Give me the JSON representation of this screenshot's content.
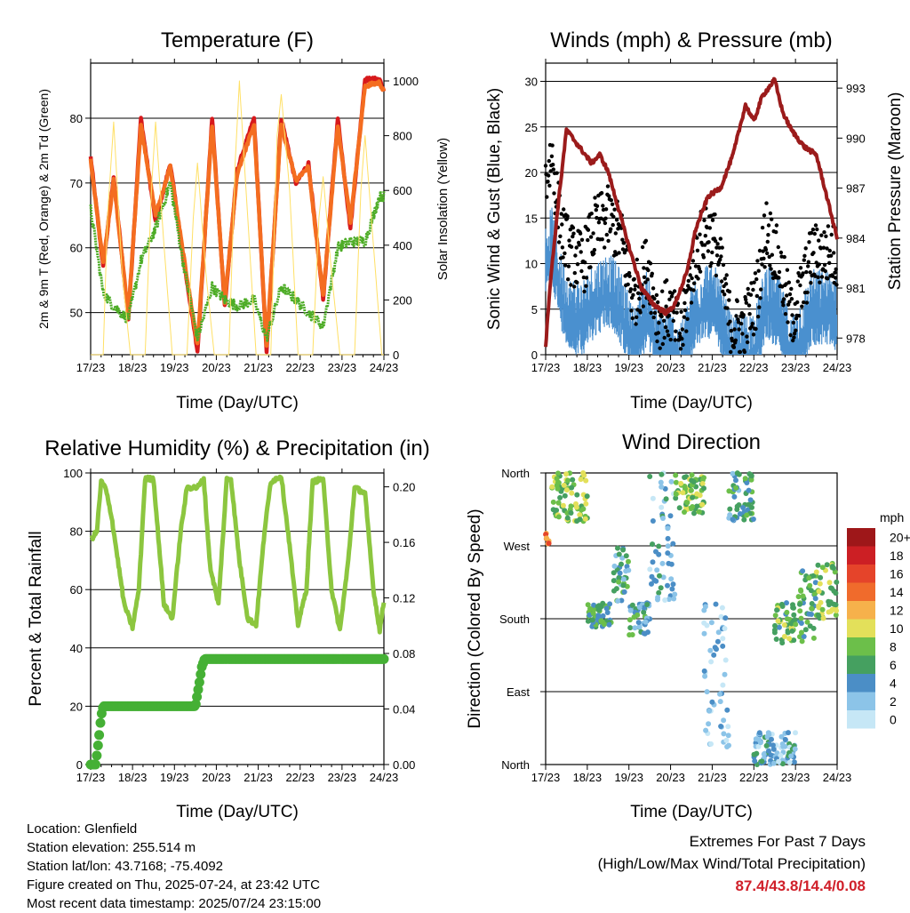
{
  "x_ticks": [
    "17/23",
    "18/23",
    "19/23",
    "20/23",
    "21/23",
    "22/23",
    "23/23",
    "24/23"
  ],
  "charts": {
    "temperature": {
      "title": "Temperature (F)",
      "xlabel": "Time (Day/UTC)",
      "ylabel": "2m & 9m T (Red, Orange) & 2m Td (Green)",
      "ylabel_right": "Solar Insolation (Yellow)"
    },
    "winds": {
      "title": "Winds (mph) & Pressure (mb)",
      "xlabel": "Time (Day/UTC)",
      "ylabel": "Sonic Wind & Gust (Blue, Black)",
      "ylabel_right": "Station Pressure (Maroon)"
    },
    "humidity": {
      "title": "Relative Humidity (%) & Precipitation (in)",
      "xlabel": "Time (Day/UTC)",
      "ylabel": "Percent & Total Rainfall"
    },
    "direction": {
      "title": "Wind Direction",
      "xlabel": "Time (Day/UTC)",
      "ylabel": "Direction (Colored By Speed)",
      "legend_title": "mph"
    }
  },
  "info": {
    "location": "Location: Glenfield",
    "elevation": "Station elevation: 255.514 m",
    "latlon": "Station lat/lon: 43.7168; -75.4092",
    "created": "Figure created on Thu, 2025-07-24, at 23:42 UTC",
    "latest": "Most recent data timestamp: 2025/07/24 23:15:00"
  },
  "extremes": {
    "line1": "Extremes For Past 7 Days",
    "line2": "(High/Low/Max Wind/Total Precipitation)",
    "values": "87.4/43.8/14.4/0.08"
  },
  "colors": {
    "temp_2m": "#d7191c",
    "temp_9m": "#f46d20",
    "dewpoint": "#4dac26",
    "solar": "#ffe066",
    "sonic_wind": "#4a90cf",
    "gust": "#000000",
    "pressure": "#9b1b1b",
    "rh": "#8cc63f",
    "precip": "#45b035"
  },
  "chart_data": [
    {
      "id": "temperature",
      "type": "line",
      "title": "Temperature (F)",
      "xlabel": "Time (Day/UTC)",
      "ylabel": "2m & 9m T (Red, Orange) & 2m Td (Green)",
      "ylabel_right": "Solar Insolation (Yellow)",
      "x_ticks": [
        "17/23",
        "18/23",
        "19/23",
        "20/23",
        "21/23",
        "22/23",
        "23/23",
        "24/23"
      ],
      "y_ticks": [
        50,
        60,
        70,
        80
      ],
      "y_right_ticks": [
        0,
        200,
        400,
        600,
        800,
        1000
      ],
      "ylim": [
        43.5,
        88.5
      ],
      "ylim_right": [
        0,
        1065
      ],
      "grid": "horizontal",
      "x_days": [
        0,
        0.3,
        0.55,
        0.9,
        1.2,
        1.55,
        1.9,
        2.2,
        2.55,
        2.9,
        3.2,
        3.5,
        3.9,
        4.2,
        4.55,
        4.9,
        5.2,
        5.55,
        5.9,
        6.2,
        6.55,
        6.9,
        7.0
      ],
      "series": [
        {
          "name": "2m T",
          "axis": "left",
          "color": "#d7191c",
          "values": [
            74,
            57,
            71,
            49,
            80,
            64,
            73,
            59,
            44,
            80,
            51,
            72,
            80,
            44,
            80,
            70,
            73,
            52,
            80,
            63,
            86,
            86,
            84
          ]
        },
        {
          "name": "9m T",
          "axis": "left",
          "color": "#f46d20",
          "values": [
            73.5,
            57.5,
            70.5,
            49.5,
            79,
            65,
            72.5,
            59.5,
            45,
            79,
            51.5,
            71.5,
            79,
            45,
            79,
            70.5,
            72.5,
            52.5,
            79,
            64,
            85,
            85.5,
            84
          ]
        },
        {
          "name": "2m Td",
          "axis": "left",
          "color": "#4dac26",
          "values": [
            66,
            53,
            51,
            49,
            58,
            63,
            70,
            58,
            46,
            54,
            52,
            51,
            52,
            46,
            54,
            52,
            50,
            48,
            60,
            61,
            61,
            68,
            68
          ]
        },
        {
          "name": "Solar Insolation",
          "axis": "right",
          "color": "#ffe066",
          "x_days": [
            0,
            0.3,
            0.4,
            0.55,
            0.75,
            0.95,
            1.3,
            1.45,
            1.55,
            1.75,
            1.95,
            2.3,
            2.45,
            2.55,
            2.75,
            2.95,
            3.3,
            3.45,
            3.55,
            3.75,
            3.95,
            4.3,
            4.45,
            4.55,
            4.75,
            4.95,
            5.3,
            5.45,
            5.55,
            5.75,
            5.95,
            6.3,
            6.45,
            6.55,
            6.75,
            6.95,
            7.0
          ],
          "values": [
            0,
            0,
            500,
            850,
            300,
            0,
            0,
            600,
            850,
            400,
            0,
            0,
            500,
            700,
            300,
            0,
            0,
            700,
            1000,
            500,
            0,
            0,
            800,
            950,
            600,
            0,
            0,
            500,
            650,
            300,
            0,
            0,
            600,
            800,
            400,
            0,
            0
          ]
        }
      ]
    },
    {
      "id": "winds",
      "type": "line",
      "title": "Winds (mph) & Pressure (mb)",
      "xlabel": "Time (Day/UTC)",
      "ylabel": "Sonic Wind & Gust (Blue, Black)",
      "ylabel_right": "Station Pressure (Maroon)",
      "x_ticks": [
        "17/23",
        "18/23",
        "19/23",
        "20/23",
        "21/23",
        "22/23",
        "23/23",
        "24/23"
      ],
      "y_ticks": [
        0,
        5,
        10,
        15,
        20,
        25,
        30
      ],
      "y_right_ticks": [
        978,
        981,
        984,
        987,
        990,
        993
      ],
      "ylim": [
        0,
        32
      ],
      "ylim_right": [
        977,
        994.5
      ],
      "grid": "horizontal",
      "series": [
        {
          "name": "Gust",
          "axis": "left",
          "color": "#000000",
          "x_days": [
            0,
            0.15,
            0.35,
            0.6,
            0.9,
            1.2,
            1.5,
            1.8,
            2.1,
            2.45,
            2.7,
            2.95,
            3.25,
            3.55,
            3.85,
            4.1,
            4.45,
            4.75,
            5.05,
            5.3,
            5.6,
            5.9,
            6.15,
            6.4,
            6.7,
            6.9,
            7.0
          ],
          "values": [
            19,
            22,
            14,
            11,
            10,
            14,
            15,
            13,
            6,
            10,
            4,
            5,
            2,
            10,
            14,
            12,
            3,
            3,
            6,
            14,
            10,
            4,
            7,
            11,
            11,
            11,
            10
          ]
        },
        {
          "name": "Sonic Wind",
          "axis": "left",
          "color": "#4a90cf",
          "x_days": [
            0,
            0.15,
            0.35,
            0.6,
            0.9,
            1.2,
            1.5,
            1.8,
            2.1,
            2.45,
            2.7,
            2.95,
            3.25,
            3.55,
            3.85,
            4.1,
            4.45,
            4.75,
            5.05,
            5.3,
            5.6,
            5.9,
            6.15,
            6.4,
            6.7,
            6.9,
            7.0
          ],
          "values": [
            12,
            14,
            9,
            6,
            6,
            8,
            9,
            7,
            3,
            7,
            2,
            3,
            1,
            6,
            8,
            7,
            2,
            2,
            3,
            8,
            6,
            2,
            4,
            7,
            7,
            7,
            6
          ]
        },
        {
          "name": "Station Pressure",
          "axis": "right",
          "color": "#9b1b1b",
          "x_days": [
            0,
            0.1,
            0.3,
            0.5,
            0.8,
            1.1,
            1.3,
            1.5,
            2.0,
            2.3,
            2.6,
            2.9,
            3.1,
            3.4,
            3.6,
            3.9,
            4.2,
            4.5,
            4.8,
            5.0,
            5.2,
            5.5,
            5.7,
            5.9,
            6.2,
            6.5,
            6.8,
            7.0
          ],
          "values": [
            977.5,
            981,
            986,
            990.5,
            989.5,
            988.5,
            989,
            988,
            983.5,
            981,
            980,
            979.5,
            980,
            982,
            984.5,
            986.5,
            987,
            989,
            992,
            991,
            992.5,
            993.5,
            991.5,
            990.5,
            989.5,
            989,
            986,
            984
          ]
        }
      ]
    },
    {
      "id": "humidity",
      "type": "line",
      "title": "Relative Humidity (%) & Precipitation (in)",
      "xlabel": "Time (Day/UTC)",
      "ylabel": "Percent & Total Rainfall",
      "x_ticks": [
        "17/23",
        "18/23",
        "19/23",
        "20/23",
        "21/23",
        "22/23",
        "23/23",
        "24/23"
      ],
      "y_ticks": [
        0,
        20,
        40,
        60,
        80,
        100
      ],
      "y_right_ticks": [
        0.0,
        0.04,
        0.08,
        0.12,
        0.16,
        0.2
      ],
      "ylim": [
        0,
        100
      ],
      "ylim_right": [
        0,
        0.21
      ],
      "grid": "horizontal",
      "series": [
        {
          "name": "Relative Humidity",
          "axis": "left",
          "color": "#8cc63f",
          "x_days": [
            0,
            0.15,
            0.25,
            0.35,
            0.5,
            0.8,
            1.0,
            1.15,
            1.3,
            1.5,
            1.75,
            1.95,
            2.15,
            2.3,
            2.55,
            2.7,
            2.85,
            3.05,
            3.25,
            3.35,
            3.55,
            3.75,
            3.95,
            4.15,
            4.3,
            4.55,
            4.75,
            4.95,
            5.15,
            5.3,
            5.55,
            5.75,
            5.95,
            6.15,
            6.3,
            6.55,
            6.75,
            6.9,
            7.0
          ],
          "values": [
            77,
            80,
            97,
            95,
            85,
            55,
            47,
            60,
            98,
            98,
            55,
            50,
            80,
            95,
            95,
            98,
            68,
            55,
            98,
            98,
            70,
            50,
            48,
            80,
            97,
            99,
            75,
            48,
            60,
            97,
            98,
            60,
            46,
            70,
            95,
            93,
            60,
            46,
            56
          ]
        },
        {
          "name": "Total Precipitation",
          "axis": "right",
          "color": "#45b035",
          "x_days": [
            0,
            0.12,
            0.2,
            0.25,
            0.3,
            0.7,
            1.2,
            1.8,
            2.5,
            2.6,
            2.65,
            2.72,
            2.8,
            3.2,
            4.0,
            5.0,
            6.0,
            7.0
          ],
          "values": [
            0.0,
            0.0,
            0.02,
            0.035,
            0.042,
            0.042,
            0.042,
            0.042,
            0.042,
            0.06,
            0.07,
            0.076,
            0.076,
            0.076,
            0.076,
            0.076,
            0.076,
            0.076
          ]
        }
      ]
    },
    {
      "id": "direction",
      "type": "scatter",
      "title": "Wind Direction",
      "xlabel": "Time (Day/UTC)",
      "ylabel": "Direction (Colored By Speed)",
      "x_ticks": [
        "17/23",
        "18/23",
        "19/23",
        "20/23",
        "21/23",
        "22/23",
        "23/23",
        "24/23"
      ],
      "y_ticks": [
        "North",
        "East",
        "South",
        "West",
        "North"
      ],
      "ylim": [
        0,
        360
      ],
      "grid": "horizontal",
      "colorbar": {
        "title": "mph",
        "labels": [
          "0",
          "2",
          "4",
          "6",
          "8",
          "10",
          "12",
          "14",
          "16",
          "18",
          "20+"
        ],
        "colors": [
          "#c6e7f6",
          "#8cc4e8",
          "#4b8ec6",
          "#45a060",
          "#6cbf4a",
          "#e3e05a",
          "#f6b14b",
          "#f06b2c",
          "#e5442a",
          "#cc1f24",
          "#9e1719"
        ]
      },
      "clusters": [
        {
          "t": [
            0.0,
            0.08
          ],
          "dir": [
            270,
            290
          ],
          "speed": 14
        },
        {
          "t": [
            0.15,
            1.0
          ],
          "dir": [
            300,
            360
          ],
          "speed": 8
        },
        {
          "t": [
            1.0,
            1.6
          ],
          "dir": [
            170,
            200
          ],
          "speed": 6
        },
        {
          "t": [
            1.6,
            2.0
          ],
          "dir": [
            200,
            270
          ],
          "speed": 5
        },
        {
          "t": [
            2.0,
            2.5
          ],
          "dir": [
            160,
            200
          ],
          "speed": 5
        },
        {
          "t": [
            2.5,
            3.1
          ],
          "dir": [
            200,
            360
          ],
          "speed": 3
        },
        {
          "t": [
            3.1,
            3.8
          ],
          "dir": [
            310,
            360
          ],
          "speed": 8
        },
        {
          "t": [
            3.8,
            4.4
          ],
          "dir": [
            20,
            200
          ],
          "speed": 2
        },
        {
          "t": [
            4.4,
            5.0
          ],
          "dir": [
            300,
            360
          ],
          "speed": 5
        },
        {
          "t": [
            5.0,
            6.0
          ],
          "dir": [
            0,
            40
          ],
          "speed": 3
        },
        {
          "t": [
            5.5,
            6.0
          ],
          "dir": [
            150,
            200
          ],
          "speed": 7
        },
        {
          "t": [
            6.0,
            6.5
          ],
          "dir": [
            150,
            240
          ],
          "speed": 6
        },
        {
          "t": [
            6.5,
            7.0
          ],
          "dir": [
            180,
            250
          ],
          "speed": 8
        }
      ]
    }
  ]
}
